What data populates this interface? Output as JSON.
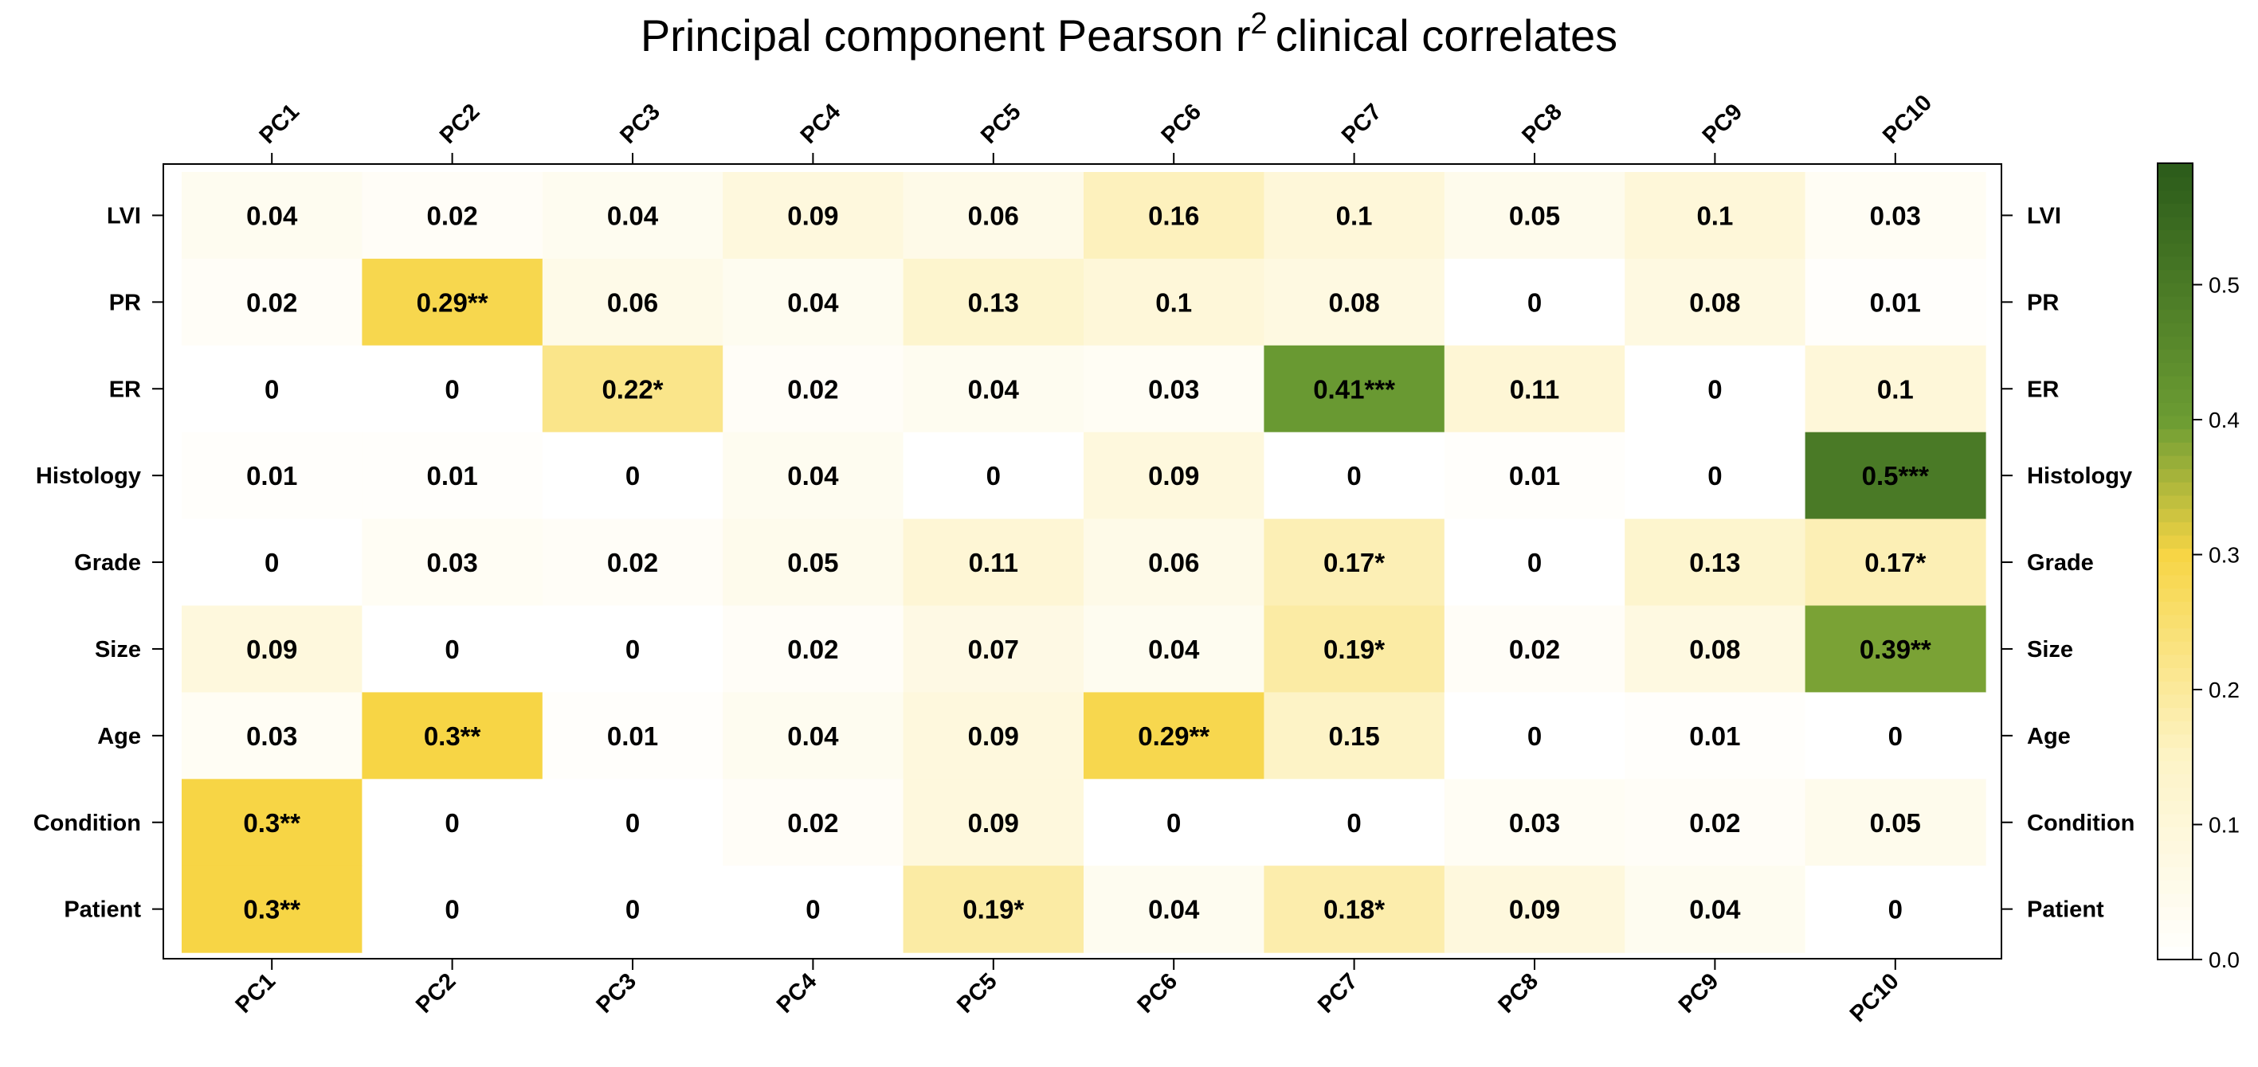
{
  "chart_data": {
    "type": "heatmap",
    "title": "Principal component Pearson r",
    "title_superscript": "2",
    "title_suffix": "clinical correlates",
    "columns": [
      "PC1",
      "PC2",
      "PC3",
      "PC4",
      "PC5",
      "PC6",
      "PC7",
      "PC8",
      "PC9",
      "PC10"
    ],
    "rows": [
      "LVI",
      "PR",
      "ER",
      "Histology",
      "Grade",
      "Size",
      "Age",
      "Condition",
      "Patient"
    ],
    "values": [
      [
        0.04,
        0.02,
        0.04,
        0.09,
        0.06,
        0.16,
        0.1,
        0.05,
        0.1,
        0.03
      ],
      [
        0.02,
        0.29,
        0.06,
        0.04,
        0.13,
        0.1,
        0.08,
        0,
        0.08,
        0.01
      ],
      [
        0,
        0,
        0.22,
        0.02,
        0.04,
        0.03,
        0.41,
        0.11,
        0,
        0.1
      ],
      [
        0.01,
        0.01,
        0,
        0.04,
        0,
        0.09,
        0,
        0.01,
        0,
        0.5
      ],
      [
        0,
        0.03,
        0.02,
        0.05,
        0.11,
        0.06,
        0.17,
        0,
        0.13,
        0.17
      ],
      [
        0.09,
        0,
        0,
        0.02,
        0.07,
        0.04,
        0.19,
        0.02,
        0.08,
        0.39
      ],
      [
        0.03,
        0.3,
        0.01,
        0.04,
        0.09,
        0.29,
        0.15,
        0,
        0.01,
        0
      ],
      [
        0.3,
        0,
        0,
        0.02,
        0.09,
        0,
        0,
        0.03,
        0.02,
        0.05
      ],
      [
        0.3,
        0,
        0,
        0,
        0.19,
        0.04,
        0.18,
        0.09,
        0.04,
        0
      ]
    ],
    "labels": [
      [
        "0.04",
        "0.02",
        "0.04",
        "0.09",
        "0.06",
        "0.16",
        "0.1",
        "0.05",
        "0.1",
        "0.03"
      ],
      [
        "0.02",
        "0.29**",
        "0.06",
        "0.04",
        "0.13",
        "0.1",
        "0.08",
        "0",
        "0.08",
        "0.01"
      ],
      [
        "0",
        "0",
        "0.22*",
        "0.02",
        "0.04",
        "0.03",
        "0.41***",
        "0.11",
        "0",
        "0.1"
      ],
      [
        "0.01",
        "0.01",
        "0",
        "0.04",
        "0",
        "0.09",
        "0",
        "0.01",
        "0",
        "0.5***"
      ],
      [
        "0",
        "0.03",
        "0.02",
        "0.05",
        "0.11",
        "0.06",
        "0.17*",
        "0",
        "0.13",
        "0.17*"
      ],
      [
        "0.09",
        "0",
        "0",
        "0.02",
        "0.07",
        "0.04",
        "0.19*",
        "0.02",
        "0.08",
        "0.39**"
      ],
      [
        "0.03",
        "0.3**",
        "0.01",
        "0.04",
        "0.09",
        "0.29**",
        "0.15",
        "0",
        "0.01",
        "0"
      ],
      [
        "0.3**",
        "0",
        "0",
        "0.02",
        "0.09",
        "0",
        "0",
        "0.03",
        "0.02",
        "0.05"
      ],
      [
        "0.3**",
        "0",
        "0",
        "0",
        "0.19*",
        "0.04",
        "0.18*",
        "0.09",
        "0.04",
        "0"
      ]
    ],
    "colorbar": {
      "range": [
        0,
        0.59
      ],
      "ticks": [
        0.0,
        0.1,
        0.2,
        0.3,
        0.4,
        0.5
      ],
      "tick_labels": [
        "0.0",
        "0.1",
        "0.2",
        "0.3",
        "0.4",
        "0.5"
      ],
      "color_stops": [
        {
          "value": 0.0,
          "color": "#ffffff"
        },
        {
          "value": 0.15,
          "color": "#fdf3c6"
        },
        {
          "value": 0.3,
          "color": "#f7d545"
        },
        {
          "value": 0.4,
          "color": "#6c9c33"
        },
        {
          "value": 0.59,
          "color": "#2b5b1a"
        }
      ]
    },
    "column_labels_top_and_bottom": true,
    "row_labels_left_and_right": true
  }
}
